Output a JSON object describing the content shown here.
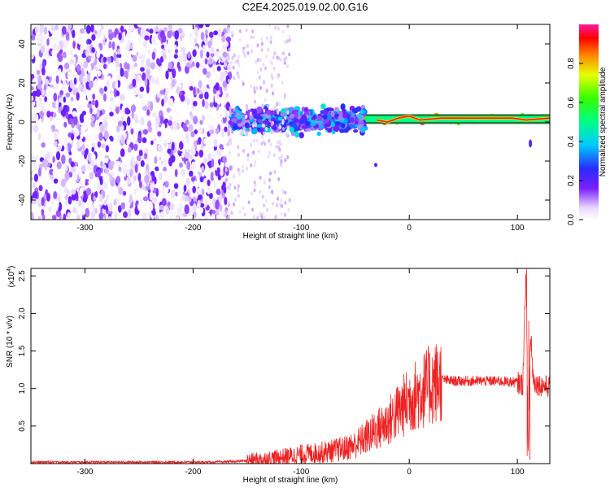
{
  "chart_data": [
    {
      "type": "heatmap",
      "title": "C2E4.2025.019.02.00.G16",
      "xlabel": "Height of straight line (km)",
      "ylabel": "Frequency (Hz)",
      "xlim": [
        -350,
        130
      ],
      "ylim": [
        -50,
        50
      ],
      "xticks": [
        -300,
        -200,
        -100,
        0,
        100
      ],
      "yticks": [
        -40,
        -20,
        0,
        20,
        40
      ],
      "colorbar": {
        "label": "Normalized spectral amplitude",
        "ticks": [
          "0.0",
          "0.2",
          "0.4",
          "0.6",
          "0.8"
        ],
        "range": [
          0,
          1
        ]
      },
      "regions": [
        {
          "x_range": [
            -350,
            -165
          ],
          "freq_range": [
            -50,
            50
          ],
          "amplitude": [
            0.0,
            0.2
          ],
          "description": "broadband"
        },
        {
          "x_range": [
            -165,
            -40
          ],
          "freq_range": [
            -8,
            10
          ],
          "amplitude": [
            0.1,
            0.45
          ]
        },
        {
          "x_range": [
            -40,
            130
          ],
          "freq_range": [
            -1,
            4
          ],
          "amplitude": [
            0.6,
            0.95
          ]
        }
      ],
      "ridge": [
        {
          "x": -30,
          "f": 1
        },
        {
          "x": -20,
          "f": 0
        },
        {
          "x": -10,
          "f": 2
        },
        {
          "x": 0,
          "f": 3
        },
        {
          "x": 10,
          "f": 1
        },
        {
          "x": 30,
          "f": 2
        },
        {
          "x": 60,
          "f": 2
        },
        {
          "x": 80,
          "f": 2
        },
        {
          "x": 95,
          "f": 2
        },
        {
          "x": 108,
          "f": 1
        },
        {
          "x": 130,
          "f": 2
        }
      ]
    },
    {
      "type": "line",
      "xlabel": "Height of straight line (km)",
      "ylabel": "SNR (10 * v/v)",
      "yscale_label": "(x10",
      "yscale_exponent": "4",
      "xlim": [
        -350,
        130
      ],
      "ylim": [
        0,
        2.6
      ],
      "xticks": [
        -300,
        -200,
        -100,
        0,
        100
      ],
      "yticks": [
        "0.5",
        "1.0",
        "1.5",
        "2.0",
        "2.5"
      ],
      "series": [
        {
          "color": "#ee2222",
          "x": [
            -350,
            -300,
            -250,
            -200,
            -180,
            -160,
            -140,
            -120,
            -100,
            -80,
            -60,
            -50,
            -40,
            -30,
            -20,
            -10,
            0,
            10,
            20,
            30,
            40,
            60,
            80,
            100,
            105,
            108,
            110,
            112,
            115,
            120,
            130
          ],
          "values": [
            0.02,
            0.02,
            0.02,
            0.02,
            0.02,
            0.03,
            0.05,
            0.08,
            0.12,
            0.15,
            0.2,
            0.25,
            0.35,
            0.45,
            0.55,
            0.7,
            0.85,
            0.95,
            1.05,
            1.12,
            1.1,
            1.1,
            1.1,
            1.08,
            1.05,
            2.6,
            0.1,
            1.7,
            1.1,
            1.05,
            1.02
          ]
        }
      ]
    }
  ]
}
